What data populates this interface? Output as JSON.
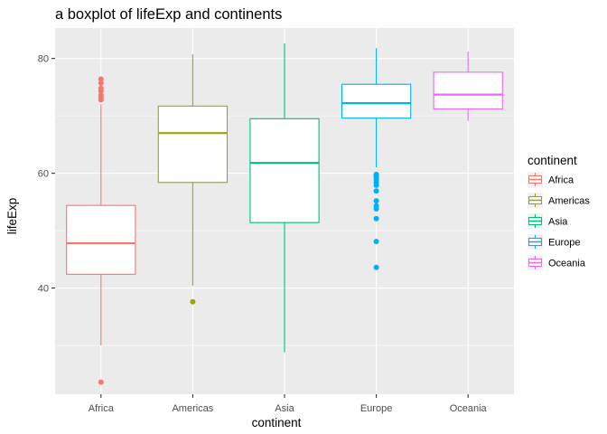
{
  "chart_data": {
    "type": "boxplot",
    "title": "a boxplot of lifeExp and continents",
    "xlabel": "continent",
    "ylabel": "lifeExp",
    "ylim": [
      21.5,
      85.3
    ],
    "yticks": [
      40,
      60,
      80
    ],
    "grid": true,
    "legend": {
      "title": "continent",
      "position": "right"
    },
    "categories": [
      "Africa",
      "Americas",
      "Asia",
      "Europe",
      "Oceania"
    ],
    "series": [
      {
        "name": "Africa",
        "color": "#F8766D",
        "whisker_low": 30.0,
        "q1": 42.4,
        "median": 47.8,
        "q3": 54.4,
        "whisker_high": 72.0,
        "outliers": [
          23.6,
          72.8,
          73.2,
          73.6,
          74.3,
          74.8,
          75.7,
          76.4
        ]
      },
      {
        "name": "Americas",
        "color": "#A3A500",
        "whisker_low": 40.4,
        "q1": 58.4,
        "median": 67.0,
        "q3": 71.7,
        "whisker_high": 80.7,
        "outliers": [
          37.6
        ]
      },
      {
        "name": "Asia",
        "color": "#00BF7D",
        "whisker_low": 28.8,
        "q1": 51.4,
        "median": 61.8,
        "q3": 69.5,
        "whisker_high": 82.6,
        "outliers": []
      },
      {
        "name": "Europe",
        "color": "#00B0F6",
        "whisker_low": 61.0,
        "q1": 69.6,
        "median": 72.2,
        "q3": 75.5,
        "whisker_high": 81.8,
        "outliers": [
          43.6,
          48.1,
          52.1,
          53.8,
          54.3,
          55.2,
          56.9,
          57.9,
          58.4,
          58.9,
          59.3,
          59.6,
          59.8
        ]
      },
      {
        "name": "Oceania",
        "color": "#E76BF3",
        "whisker_low": 69.1,
        "q1": 71.2,
        "median": 73.7,
        "q3": 77.6,
        "whisker_high": 81.2,
        "outliers": []
      }
    ]
  }
}
